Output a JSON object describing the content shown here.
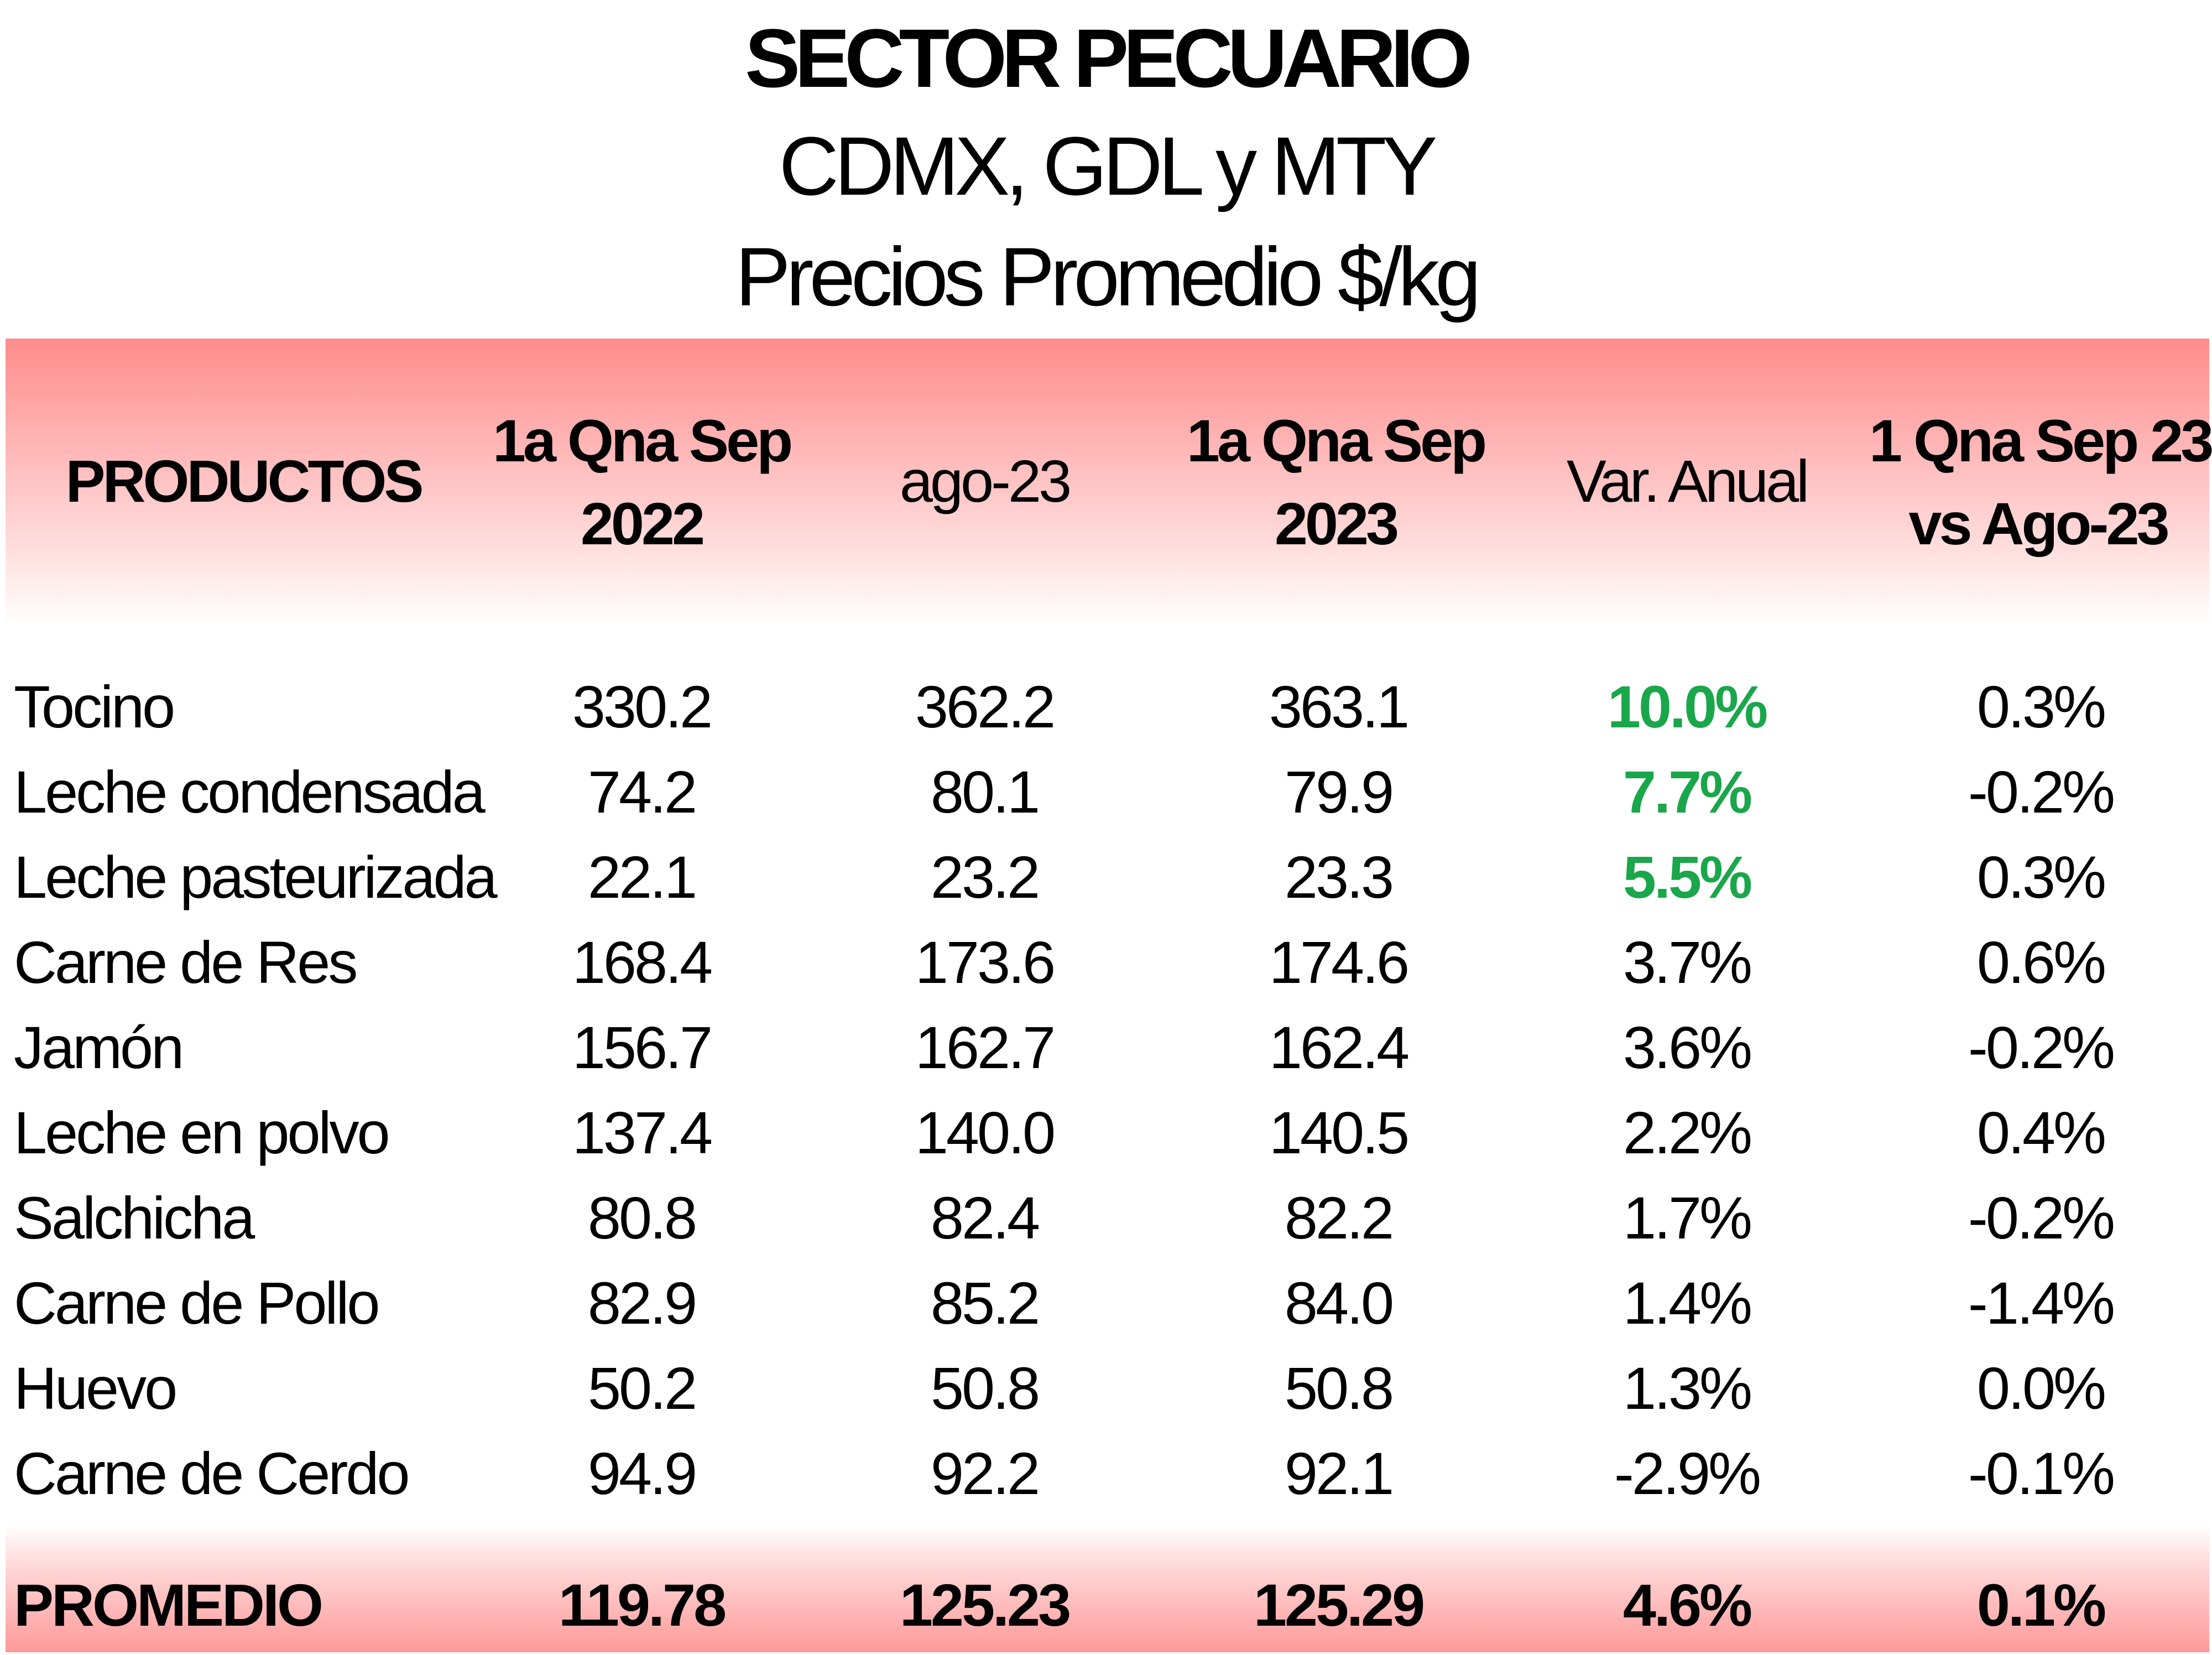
{
  "title": "SECTOR PECUARIO",
  "subtitle1": "CDMX, GDL y MTY",
  "subtitle2": "Precios Promedio $/kg",
  "headers": {
    "productos": "PRODUCTOS",
    "col1_line1": "1a Qna Sep",
    "col1_line2": "2022",
    "col2": "ago-23",
    "col3_line1": "1a Qna Sep",
    "col3_line2": "2023",
    "col4": "Var. Anual",
    "col5_line1": "1 Qna Sep 23",
    "col5_line2": "vs Ago-23"
  },
  "highlight_color": "#1aa64a",
  "rows": [
    {
      "product": "Tocino",
      "q_sep_2022": "330.2",
      "ago_23": "362.2",
      "q_sep_2023": "363.1",
      "var_anual": "10.0%",
      "vs_ago": "0.3%",
      "highlight": true
    },
    {
      "product": "Leche condensada",
      "q_sep_2022": "74.2",
      "ago_23": "80.1",
      "q_sep_2023": "79.9",
      "var_anual": "7.7%",
      "vs_ago": "-0.2%",
      "highlight": true
    },
    {
      "product": "Leche pasteurizada",
      "q_sep_2022": "22.1",
      "ago_23": "23.2",
      "q_sep_2023": "23.3",
      "var_anual": "5.5%",
      "vs_ago": "0.3%",
      "highlight": true
    },
    {
      "product": "Carne de Res",
      "q_sep_2022": "168.4",
      "ago_23": "173.6",
      "q_sep_2023": "174.6",
      "var_anual": "3.7%",
      "vs_ago": "0.6%",
      "highlight": false
    },
    {
      "product": "Jamón",
      "q_sep_2022": "156.7",
      "ago_23": "162.7",
      "q_sep_2023": "162.4",
      "var_anual": "3.6%",
      "vs_ago": "-0.2%",
      "highlight": false
    },
    {
      "product": "Leche en polvo",
      "q_sep_2022": "137.4",
      "ago_23": "140.0",
      "q_sep_2023": "140.5",
      "var_anual": "2.2%",
      "vs_ago": "0.4%",
      "highlight": false
    },
    {
      "product": "Salchicha",
      "q_sep_2022": "80.8",
      "ago_23": "82.4",
      "q_sep_2023": "82.2",
      "var_anual": "1.7%",
      "vs_ago": "-0.2%",
      "highlight": false
    },
    {
      "product": "Carne de Pollo",
      "q_sep_2022": "82.9",
      "ago_23": "85.2",
      "q_sep_2023": "84.0",
      "var_anual": "1.4%",
      "vs_ago": "-1.4%",
      "highlight": false
    },
    {
      "product": "Huevo",
      "q_sep_2022": "50.2",
      "ago_23": "50.8",
      "q_sep_2023": "50.8",
      "var_anual": "1.3%",
      "vs_ago": "0.0%",
      "highlight": false
    },
    {
      "product": "Carne de Cerdo",
      "q_sep_2022": "94.9",
      "ago_23": "92.2",
      "q_sep_2023": "92.1",
      "var_anual": "-2.9%",
      "vs_ago": "-0.1%",
      "highlight": false
    }
  ],
  "total": {
    "label": "PROMEDIO",
    "q_sep_2022": "119.78",
    "ago_23": "125.23",
    "q_sep_2023": "125.29",
    "var_anual": "4.6%",
    "vs_ago": "0.1%"
  }
}
